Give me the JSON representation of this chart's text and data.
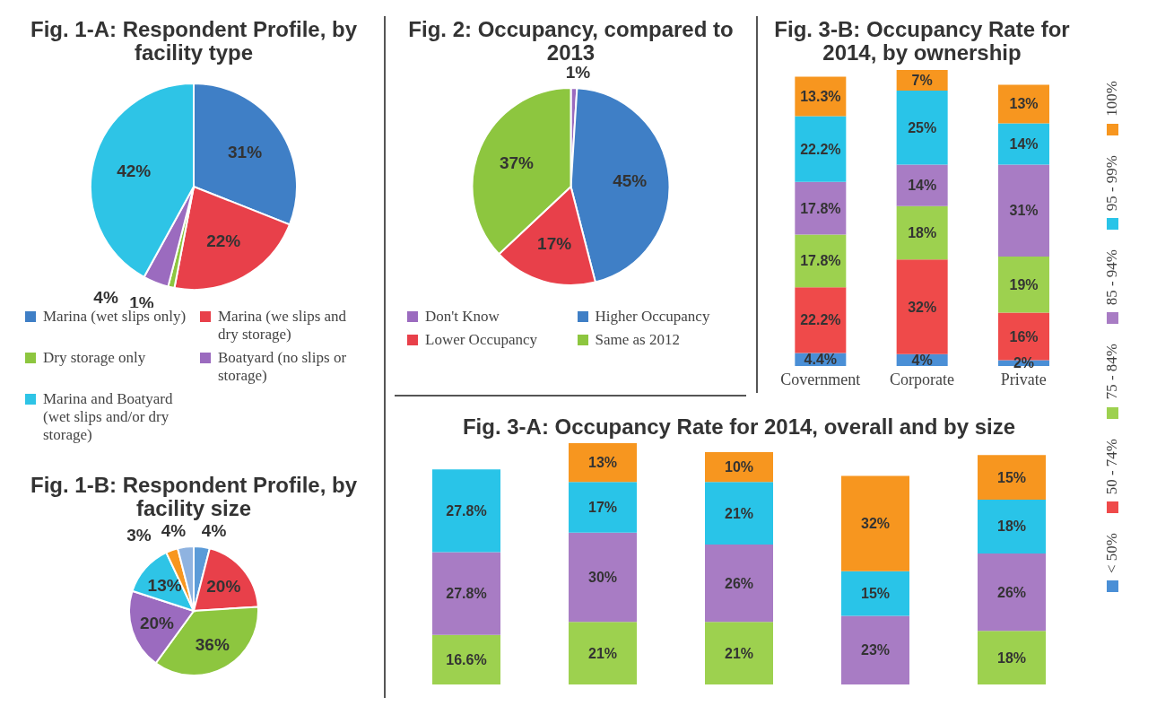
{
  "chart_data": [
    {
      "type": "pie",
      "title": "Fig. 1-A: Respondent Profile, by facility type",
      "categories": [
        "Marina (wet slips only)",
        "Marina (we slips and dry storage)",
        "Dry storage only",
        "Boatyard (no slips or storage)",
        "Marina and Boatyard (wet slips and/or dry storage)"
      ],
      "values": [
        31,
        22,
        1,
        4,
        42
      ],
      "value_labels": [
        "31%",
        "22%",
        "1%",
        "4%",
        "42%"
      ],
      "colors": [
        "#3f7fc6",
        "#e8404a",
        "#8dc63f",
        "#9b6bbf",
        "#2ec4e6"
      ],
      "legend": "bottom"
    },
    {
      "type": "pie",
      "title": "Fig. 2: Occupancy, compared to 2013",
      "categories": [
        "Don't Know",
        "Higher Occupancy",
        "Lower Occupancy",
        "Same as 2012"
      ],
      "values": [
        1,
        45,
        17,
        37
      ],
      "value_labels": [
        "1%",
        "45%",
        "17%",
        "37%"
      ],
      "colors": [
        "#9b6bbf",
        "#3f7fc6",
        "#e8404a",
        "#8dc63f"
      ],
      "legend": "bottom"
    },
    {
      "type": "bar",
      "stacked": true,
      "title": "Fig. 3-B: Occupancy Rate for 2014, by ownership",
      "categories": [
        "Covernment",
        "Corporate",
        "Private"
      ],
      "legend": "right",
      "series": [
        {
          "name": "< 50%",
          "color": "#4a8fd6",
          "values": [
            4.4,
            4,
            2
          ],
          "value_labels": [
            "4.4%",
            "4%",
            "2%"
          ]
        },
        {
          "name": "50 - 74%",
          "color": "#ef4a4a",
          "values": [
            22.2,
            32,
            16
          ],
          "value_labels": [
            "22.2%",
            "32%",
            "16%"
          ]
        },
        {
          "name": "75 - 84%",
          "color": "#9dd14f",
          "values": [
            17.8,
            18,
            19
          ],
          "value_labels": [
            "17.8%",
            "18%",
            "19%"
          ]
        },
        {
          "name": "85 - 94%",
          "color": "#a87cc4",
          "values": [
            17.8,
            14,
            31
          ],
          "value_labels": [
            "17.8%",
            "14%",
            "31%"
          ]
        },
        {
          "name": "95 - 99%",
          "color": "#29c4e8",
          "values": [
            22.2,
            25,
            14
          ],
          "value_labels": [
            "22.2%",
            "25%",
            "14%"
          ]
        },
        {
          "name": "100%",
          "color": "#f7961f",
          "values": [
            13.3,
            7,
            13
          ],
          "value_labels": [
            "13.3%",
            "7%",
            "13%"
          ]
        }
      ]
    },
    {
      "type": "bar",
      "stacked": true,
      "title": "Fig. 3-A: Occupancy Rate for 2014, overall and by size",
      "categories": [
        null,
        null,
        null,
        null,
        null
      ],
      "series": [
        {
          "color": "#9dd14f",
          "values": [
            16.6,
            21,
            21,
            null,
            18
          ],
          "value_labels": [
            "16.6%",
            "21%",
            "21%",
            null,
            "18%"
          ]
        },
        {
          "color": "#a87cc4",
          "values": [
            27.8,
            30,
            26,
            23,
            26
          ],
          "value_labels": [
            "27.8%",
            "30%",
            "26%",
            "23%",
            "26%"
          ]
        },
        {
          "color": "#29c4e8",
          "values": [
            27.8,
            17,
            21,
            15,
            18
          ],
          "value_labels": [
            "27.8%",
            "17%",
            "21%",
            "15%",
            "18%"
          ]
        },
        {
          "color": "#f7961f",
          "values": [
            null,
            13,
            10,
            32,
            15
          ],
          "value_labels": [
            null,
            "13%",
            "10%",
            "32%",
            "15%"
          ]
        }
      ]
    },
    {
      "type": "pie",
      "title": "Fig. 1-B: Respondent Profile, by facility size",
      "categories": [
        null,
        null,
        null,
        null,
        null,
        null,
        null
      ],
      "values": [
        4,
        20,
        36,
        20,
        13,
        3,
        4
      ],
      "value_labels": [
        "4%",
        "20%",
        "36%",
        "20%",
        "13%",
        "3%",
        "4%"
      ],
      "colors": [
        "#5b9bd8",
        "#e8404a",
        "#8dc63f",
        "#9b6bbf",
        "#2ec4e6",
        "#f7961f",
        "#8fb3e0"
      ]
    }
  ]
}
